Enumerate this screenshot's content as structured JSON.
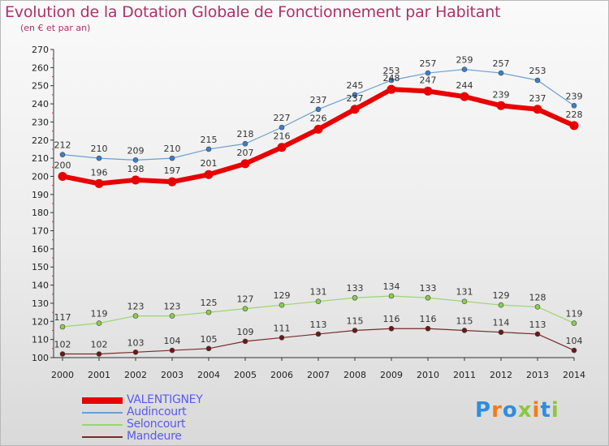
{
  "title": "Evolution de la Dotation Globale de Fonctionnement par Habitant",
  "subtitle": "(en € et par an)",
  "logo": {
    "text": "Proxiti",
    "letters": [
      {
        "ch": "P",
        "color": "#2e8de0"
      },
      {
        "ch": "r",
        "color": "#ef7d1a"
      },
      {
        "ch": "o",
        "color": "#2e8de0"
      },
      {
        "ch": "x",
        "color": "#8dc63f"
      },
      {
        "ch": "i",
        "color": "#ef7d1a"
      },
      {
        "ch": "t",
        "color": "#2e8de0"
      },
      {
        "ch": "i",
        "color": "#8dc63f"
      }
    ]
  },
  "chart_data": {
    "type": "line",
    "x": [
      2000,
      2001,
      2002,
      2003,
      2004,
      2005,
      2006,
      2007,
      2008,
      2009,
      2010,
      2011,
      2012,
      2013,
      2014
    ],
    "ylim": [
      100,
      270
    ],
    "yticks": [
      100,
      110,
      120,
      130,
      140,
      150,
      160,
      170,
      180,
      190,
      200,
      210,
      220,
      230,
      240,
      250,
      260,
      270
    ],
    "grid": false,
    "legend_position": "bottom-left",
    "series": [
      {
        "name": "VALENTIGNEY",
        "color": "#e80000",
        "values": [
          200,
          196,
          198,
          197,
          201,
          207,
          216,
          226,
          237,
          248,
          247,
          244,
          239,
          237,
          228
        ]
      },
      {
        "name": "Audincourt",
        "color": "#6a9fd0",
        "values": [
          212,
          210,
          209,
          210,
          215,
          218,
          227,
          237,
          245,
          253,
          257,
          259,
          257,
          253,
          239
        ]
      },
      {
        "name": "Seloncourt",
        "color": "#9ad66a",
        "values": [
          117,
          119,
          123,
          123,
          125,
          127,
          129,
          131,
          133,
          134,
          133,
          131,
          129,
          128,
          119
        ]
      },
      {
        "name": "Mandeure",
        "color": "#7a2a2a",
        "values": [
          102,
          102,
          103,
          104,
          105,
          109,
          111,
          113,
          115,
          116,
          116,
          115,
          114,
          113,
          104
        ]
      }
    ]
  }
}
